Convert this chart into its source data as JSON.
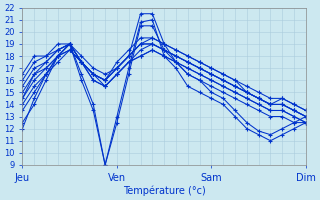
{
  "bg_color": "#cce8f0",
  "grid_color": "#aaccdd",
  "line_color": "#0033cc",
  "marker": "+",
  "xlabel": "Température (°c)",
  "x_tick_labels": [
    "Jeu",
    "Ven",
    "Sam",
    "Dim"
  ],
  "x_tick_positions": [
    0,
    8,
    16,
    24
  ],
  "ylim": [
    9,
    22
  ],
  "yticks": [
    9,
    10,
    11,
    12,
    13,
    14,
    15,
    16,
    17,
    18,
    19,
    20,
    21,
    22
  ],
  "series": [
    [
      12.5,
      14.0,
      16.0,
      18.0,
      19.0,
      16.5,
      14.0,
      9.0,
      12.5,
      16.5,
      20.5,
      20.5,
      18.5,
      17.5,
      16.5,
      16.0,
      15.0,
      14.5,
      13.5,
      12.5,
      11.8,
      11.5,
      12.0,
      12.5,
      13.0
    ],
    [
      12.0,
      14.5,
      16.5,
      18.0,
      19.0,
      16.0,
      13.5,
      9.0,
      13.0,
      17.0,
      20.8,
      21.0,
      18.0,
      17.0,
      15.5,
      15.0,
      14.5,
      14.0,
      13.0,
      12.0,
      11.5,
      11.0,
      11.5,
      12.0,
      12.5
    ],
    [
      16.0,
      17.5,
      18.0,
      18.5,
      19.0,
      18.0,
      17.0,
      16.5,
      17.0,
      18.0,
      19.0,
      19.0,
      18.5,
      18.0,
      17.5,
      17.0,
      16.5,
      16.0,
      15.5,
      15.0,
      14.5,
      14.0,
      14.0,
      13.5,
      13.0
    ],
    [
      15.5,
      17.0,
      17.5,
      18.5,
      19.0,
      17.5,
      16.5,
      16.0,
      17.0,
      18.0,
      19.0,
      19.5,
      19.0,
      18.5,
      18.0,
      17.5,
      17.0,
      16.5,
      16.0,
      15.5,
      15.0,
      14.5,
      14.5,
      14.0,
      13.5
    ],
    [
      15.0,
      16.5,
      17.0,
      18.0,
      18.5,
      17.5,
      16.5,
      16.0,
      17.0,
      18.0,
      19.0,
      19.0,
      18.5,
      18.0,
      17.5,
      17.0,
      16.5,
      16.0,
      15.5,
      15.0,
      14.5,
      14.0,
      14.5,
      14.0,
      13.5
    ],
    [
      14.5,
      16.0,
      17.0,
      18.0,
      19.0,
      17.5,
      16.5,
      15.5,
      16.5,
      17.5,
      18.5,
      19.0,
      18.5,
      18.0,
      17.5,
      17.0,
      16.5,
      16.0,
      15.5,
      15.0,
      14.5,
      14.0,
      14.0,
      13.5,
      13.0
    ],
    [
      14.0,
      15.5,
      16.5,
      18.0,
      18.5,
      17.5,
      16.0,
      15.5,
      16.5,
      17.5,
      18.0,
      18.5,
      18.0,
      17.5,
      17.0,
      16.5,
      16.0,
      15.5,
      15.0,
      14.5,
      14.0,
      13.5,
      13.5,
      13.0,
      12.5
    ],
    [
      13.5,
      15.0,
      16.5,
      17.5,
      18.5,
      17.5,
      16.0,
      15.5,
      16.5,
      17.5,
      18.0,
      18.5,
      18.0,
      17.5,
      17.0,
      16.5,
      16.0,
      15.5,
      15.0,
      14.5,
      14.0,
      13.5,
      13.5,
      13.0,
      12.5
    ],
    [
      14.5,
      16.5,
      17.5,
      18.5,
      19.0,
      17.5,
      16.5,
      16.0,
      17.0,
      18.0,
      21.5,
      21.5,
      19.0,
      17.5,
      16.5,
      16.0,
      15.5,
      15.0,
      14.5,
      14.0,
      13.5,
      13.0,
      13.0,
      12.5,
      12.5
    ],
    [
      16.5,
      18.0,
      18.0,
      19.0,
      19.0,
      17.5,
      16.5,
      16.0,
      17.5,
      18.5,
      19.5,
      19.5,
      19.0,
      18.5,
      18.0,
      17.5,
      17.0,
      16.5,
      16.0,
      15.0,
      14.5,
      14.0,
      14.0,
      13.5,
      13.0
    ]
  ],
  "n_points": 25
}
